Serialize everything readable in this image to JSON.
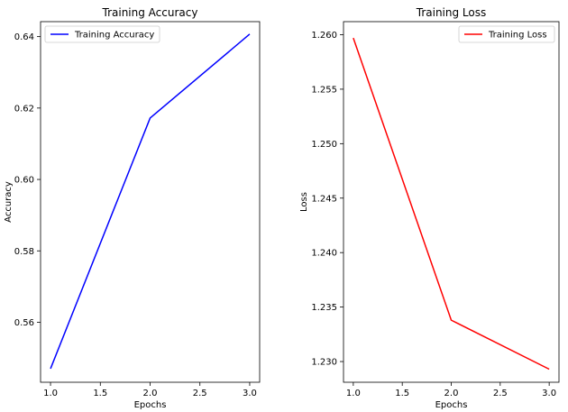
{
  "chart_data": [
    {
      "type": "line",
      "title": "Training Accuracy",
      "xlabel": "Epochs",
      "ylabel": "Accuracy",
      "xlim": [
        0.9,
        3.1
      ],
      "ylim": [
        0.5432,
        0.6442
      ],
      "x_ticks": [
        1.0,
        1.5,
        2.0,
        2.5,
        3.0
      ],
      "x_tick_labels": [
        "1.0",
        "1.5",
        "2.0",
        "2.5",
        "3.0"
      ],
      "y_ticks": [
        0.56,
        0.58,
        0.6,
        0.62,
        0.64
      ],
      "y_tick_labels": [
        "0.56",
        "0.58",
        "0.60",
        "0.62",
        "0.64"
      ],
      "grid": false,
      "legend_position": "top-left",
      "series": [
        {
          "name": "Training Accuracy",
          "color": "#0000ff",
          "x": [
            1,
            2,
            3
          ],
          "y": [
            0.547,
            0.6172,
            0.6407
          ]
        }
      ]
    },
    {
      "type": "line",
      "title": "Training Loss",
      "xlabel": "Epochs",
      "ylabel": "Loss",
      "xlim": [
        0.9,
        3.1
      ],
      "ylim": [
        1.2281,
        1.2612
      ],
      "x_ticks": [
        1.0,
        1.5,
        2.0,
        2.5,
        3.0
      ],
      "x_tick_labels": [
        "1.0",
        "1.5",
        "2.0",
        "2.5",
        "3.0"
      ],
      "y_ticks": [
        1.23,
        1.235,
        1.24,
        1.245,
        1.25,
        1.255,
        1.26
      ],
      "y_tick_labels": [
        "1.230",
        "1.235",
        "1.240",
        "1.245",
        "1.250",
        "1.255",
        "1.260"
      ],
      "grid": false,
      "legend_position": "top-right",
      "series": [
        {
          "name": "Training Loss",
          "color": "#ff0000",
          "x": [
            1,
            2,
            3
          ],
          "y": [
            1.2597,
            1.2338,
            1.2293
          ]
        }
      ]
    }
  ]
}
